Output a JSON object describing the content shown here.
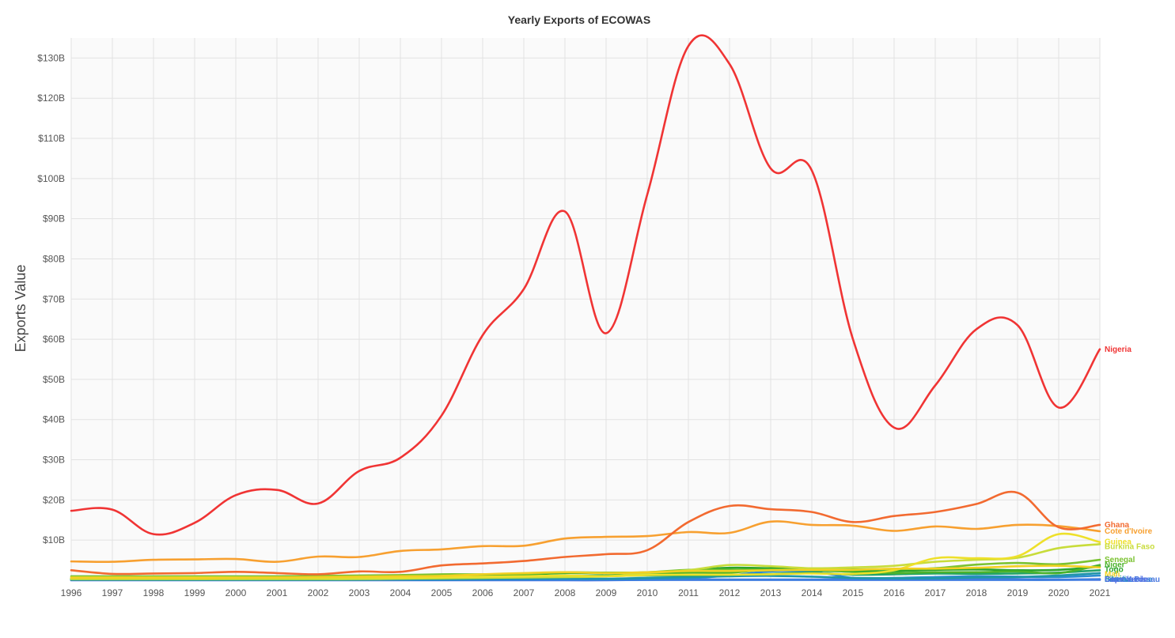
{
  "chart_data": {
    "type": "line",
    "title": "Yearly Exports of ECOWAS",
    "ylabel": "Exports Value",
    "xlabel": "",
    "x": [
      1996,
      1997,
      1998,
      1999,
      2000,
      2001,
      2002,
      2003,
      2004,
      2005,
      2006,
      2007,
      2008,
      2009,
      2010,
      2011,
      2012,
      2013,
      2014,
      2015,
      2016,
      2017,
      2018,
      2019,
      2020,
      2021
    ],
    "ylim": [
      0,
      135
    ],
    "y_unit": "B",
    "y_ticks": [
      "$10B",
      "$20B",
      "$30B",
      "$40B",
      "$50B",
      "$60B",
      "$70B",
      "$80B",
      "$90B",
      "$100B",
      "$110B",
      "$120B",
      "$130B"
    ],
    "y_tick_values": [
      10,
      20,
      30,
      40,
      50,
      60,
      70,
      80,
      90,
      100,
      110,
      120,
      130
    ],
    "grid": true,
    "legend": "end-of-line labels",
    "series": [
      {
        "name": "Nigeria",
        "color": "#f03434",
        "values": [
          17.3,
          17.6,
          11.5,
          14.3,
          21.2,
          22.5,
          19.1,
          27.2,
          30.5,
          41.0,
          61.0,
          72.5,
          91.8,
          61.5,
          96.0,
          133.0,
          128.5,
          102.5,
          102.0,
          60.0,
          38.0,
          48.5,
          62.5,
          63.5,
          43.0,
          57.5
        ]
      },
      {
        "name": "Ghana",
        "color": "#f26a30",
        "values": [
          2.5,
          1.6,
          1.7,
          1.8,
          2.1,
          1.8,
          1.5,
          2.2,
          2.1,
          3.7,
          4.2,
          4.8,
          5.8,
          6.5,
          7.5,
          14.5,
          18.5,
          17.7,
          17.0,
          14.5,
          16.0,
          17.0,
          19.0,
          21.8,
          13.2,
          13.8
        ]
      },
      {
        "name": "Cote d'Ivoire",
        "color": "#f7a030",
        "values": [
          4.7,
          4.6,
          5.1,
          5.2,
          5.3,
          4.6,
          5.9,
          5.8,
          7.3,
          7.7,
          8.5,
          8.6,
          10.4,
          10.8,
          11.0,
          12.0,
          11.8,
          14.6,
          13.8,
          13.6,
          12.3,
          13.4,
          12.8,
          13.8,
          13.5,
          12.2
        ]
      },
      {
        "name": "Mali",
        "color": "#f2d022",
        "values": [
          0.6,
          0.6,
          0.6,
          0.5,
          0.6,
          0.7,
          0.8,
          0.9,
          1.0,
          1.1,
          1.5,
          1.8,
          2.0,
          1.8,
          2.0,
          2.3,
          2.3,
          2.5,
          2.6,
          2.6,
          2.9,
          2.9,
          3.1,
          3.5,
          3.6,
          3.2
        ]
      },
      {
        "name": "Guinea",
        "color": "#eee02a",
        "values": [
          0.7,
          0.7,
          0.7,
          0.7,
          0.7,
          0.7,
          0.7,
          0.7,
          0.7,
          0.8,
          0.9,
          1.0,
          1.2,
          1.0,
          1.3,
          1.4,
          1.4,
          1.5,
          1.7,
          1.6,
          2.5,
          5.5,
          5.5,
          6.0,
          11.5,
          9.5
        ]
      },
      {
        "name": "Burkina Faso",
        "color": "#c8dc3a",
        "values": [
          0.3,
          0.3,
          0.3,
          0.3,
          0.3,
          0.3,
          0.3,
          0.3,
          0.4,
          0.5,
          0.6,
          0.7,
          0.8,
          1.0,
          1.8,
          2.5,
          3.8,
          3.5,
          3.0,
          3.2,
          3.6,
          4.6,
          5.1,
          5.6,
          8.0,
          9.0
        ]
      },
      {
        "name": "Senegal",
        "color": "#7ac230",
        "values": [
          1.0,
          1.0,
          1.0,
          1.0,
          1.0,
          1.0,
          1.1,
          1.2,
          1.3,
          1.5,
          1.5,
          1.6,
          2.0,
          1.9,
          2.0,
          2.6,
          2.6,
          2.6,
          2.6,
          2.7,
          2.8,
          3.0,
          3.9,
          4.3,
          4.0,
          5.1
        ]
      },
      {
        "name": "Niger",
        "color": "#4cb32c",
        "values": [
          0.3,
          0.3,
          0.3,
          0.3,
          0.3,
          0.3,
          0.3,
          0.4,
          0.4,
          0.5,
          0.6,
          0.8,
          1.0,
          1.1,
          1.5,
          1.9,
          1.9,
          2.7,
          2.5,
          2.1,
          1.8,
          2.0,
          2.0,
          2.2,
          1.8,
          3.8
        ]
      },
      {
        "name": "Togo",
        "color": "#2aa52a",
        "values": [
          0.4,
          0.4,
          0.4,
          0.4,
          0.4,
          0.5,
          0.5,
          0.7,
          0.9,
          1.0,
          1.1,
          1.4,
          1.8,
          1.7,
          1.8,
          2.5,
          3.1,
          3.0,
          2.9,
          2.3,
          2.3,
          2.6,
          2.7,
          2.5,
          2.6,
          3.4
        ]
      },
      {
        "name": "Benin",
        "color": "#23a36a",
        "values": [
          0.4,
          0.4,
          0.4,
          0.4,
          0.4,
          0.4,
          0.4,
          0.6,
          0.7,
          0.6,
          0.7,
          0.9,
          1.1,
          1.1,
          1.2,
          1.2,
          1.3,
          1.6,
          1.9,
          1.4,
          1.5,
          1.7,
          1.6,
          1.7,
          1.9,
          2.5
        ]
      },
      {
        "name": "Liberia",
        "color": "#2096a8",
        "values": [
          0.1,
          0.1,
          0.1,
          0.1,
          0.1,
          0.1,
          0.1,
          0.1,
          0.2,
          0.2,
          0.3,
          0.4,
          0.5,
          0.4,
          0.6,
          0.8,
          1.0,
          1.1,
          0.9,
          0.6,
          0.5,
          0.5,
          0.7,
          0.8,
          1.2,
          1.8
        ]
      },
      {
        "name": "Sierra Leone",
        "color": "#2a8cd0",
        "values": [
          0.2,
          0.2,
          0.1,
          0.1,
          0.1,
          0.1,
          0.1,
          0.2,
          0.2,
          0.2,
          0.3,
          0.3,
          0.3,
          0.3,
          0.4,
          0.5,
          1.2,
          2.2,
          2.2,
          0.6,
          0.6,
          0.8,
          1.0,
          0.9,
          0.8,
          1.2
        ]
      },
      {
        "name": "Gambia",
        "color": "#3c7ee0",
        "values": [
          0.1,
          0.1,
          0.1,
          0.1,
          0.1,
          0.1,
          0.1,
          0.1,
          0.1,
          0.1,
          0.1,
          0.1,
          0.1,
          0.1,
          0.1,
          0.1,
          0.1,
          0.1,
          0.1,
          0.1,
          0.1,
          0.1,
          0.1,
          0.1,
          0.1,
          0.2
        ]
      },
      {
        "name": "Guinea-Bissau",
        "color": "#4a78e0",
        "values": [
          0.1,
          0.1,
          0.1,
          0.1,
          0.1,
          0.1,
          0.1,
          0.1,
          0.1,
          0.1,
          0.1,
          0.1,
          0.1,
          0.1,
          0.1,
          0.2,
          0.2,
          0.2,
          0.2,
          0.3,
          0.3,
          0.3,
          0.3,
          0.3,
          0.2,
          0.3
        ]
      },
      {
        "name": "Cape Verde",
        "color": "#5a72e4",
        "values": [
          0.0,
          0.0,
          0.0,
          0.0,
          0.0,
          0.0,
          0.0,
          0.0,
          0.0,
          0.0,
          0.0,
          0.0,
          0.0,
          0.0,
          0.1,
          0.1,
          0.1,
          0.1,
          0.1,
          0.1,
          0.1,
          0.1,
          0.1,
          0.1,
          0.1,
          0.1
        ]
      }
    ]
  }
}
